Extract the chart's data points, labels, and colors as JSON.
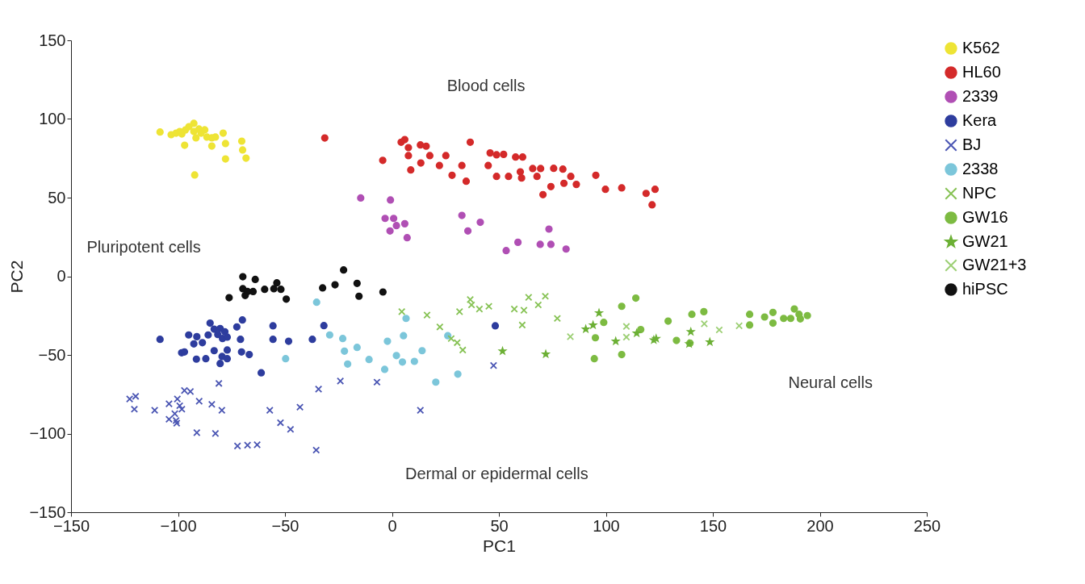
{
  "chart_data": {
    "type": "scatter",
    "xlabel": "PC1",
    "ylabel": "PC2",
    "xlim": [
      -150,
      250
    ],
    "ylim": [
      -150,
      150
    ],
    "xticks": [
      -150,
      -100,
      -50,
      0,
      50,
      100,
      150,
      200,
      250
    ],
    "yticks": [
      -150,
      -100,
      -50,
      0,
      50,
      100,
      150
    ],
    "grid": false,
    "legend": "right",
    "annotations": [
      "Blood cells",
      "Pluripotent cells",
      "Neural cells",
      "Dermal or epidermal cells"
    ],
    "series": [
      {
        "name": "K562",
        "color": "#eee435",
        "marker": "circle",
        "x": [
          -108.4,
          -103.2,
          -100.9,
          -98.2,
          -96.6,
          -94.9,
          -92.6,
          -92.6,
          -90.2,
          -89.2,
          -91.6,
          -96.9,
          -86.5,
          -84.2,
          -82.5,
          -84.2,
          -78.9,
          -77.8,
          -70.2,
          -69.8,
          -68.2,
          -77.8,
          -92.2,
          -87.5,
          -99.2
        ],
        "values": [
          91.7,
          90,
          91,
          90.5,
          93,
          95.1,
          97.2,
          92,
          93.6,
          91,
          88,
          83.3,
          88.5,
          88,
          88.5,
          82.8,
          91,
          84.4,
          85.9,
          80.3,
          75.1,
          74.6,
          64.4,
          93.1,
          92
        ]
      },
      {
        "name": "HL60",
        "color": "#d42a2a",
        "marker": "circle",
        "x": [
          -31.4,
          -4.3,
          4.3,
          6,
          7.7,
          7.7,
          13.3,
          16,
          17.7,
          8.8,
          13.5,
          22.2,
          25.2,
          28.1,
          32.7,
          34.7,
          36.6,
          45,
          45.9,
          48.9,
          52.2,
          48.9,
          54.5,
          57.8,
          61.1,
          60,
          60.6,
          65.8,
          69.5,
          67.8,
          75.6,
          79.9,
          74.3,
          70.6,
          80.4,
          83.6,
          86.2,
          95.3,
          99.8,
          107.4,
          118.8,
          123,
          121.6
        ],
        "values": [
          87.9,
          73.7,
          85.2,
          86.9,
          81.8,
          76.7,
          83.5,
          82.7,
          76.7,
          67.6,
          72,
          70.4,
          76.7,
          64.2,
          70.4,
          60.4,
          85.2,
          70.4,
          78.4,
          77.2,
          77.5,
          63.5,
          63.5,
          75.8,
          75.8,
          66.4,
          62.5,
          68.5,
          68.5,
          63.5,
          68.6,
          68.1,
          57,
          51.9,
          59.1,
          63.5,
          58.4,
          64.2,
          55.3,
          56.2,
          52.7,
          55.3,
          45.4
        ]
      },
      {
        "name": "2339",
        "color": "#b04fb4",
        "marker": "circle",
        "x": [
          -14.6,
          -0.7,
          -3.2,
          0.8,
          2.1,
          6,
          -0.9,
          7.1,
          32.7,
          41.3,
          35.5,
          53.4,
          58.9,
          73.4,
          69.3,
          74.3,
          81.4
        ],
        "values": [
          49.8,
          48.5,
          36.8,
          36.8,
          32.2,
          33.4,
          28.8,
          24.5,
          38.7,
          34.3,
          28.8,
          16.3,
          21.6,
          30,
          20.3,
          20.3,
          17.3
        ]
      },
      {
        "name": "Kera",
        "color": "#2e3d9e",
        "marker": "circle",
        "x": [
          -108.4,
          -95,
          -91.2,
          -92.6,
          -88.6,
          -98.3,
          -97,
          -91.4,
          -87,
          -85.9,
          -85,
          -83.1,
          -80.3,
          -78.1,
          -79.2,
          -77,
          -83.1,
          -77,
          -79.4,
          -77,
          -80.3,
          -72.5,
          -69.9,
          -70.8,
          -70.3,
          -66.7,
          -61.1,
          -55.6,
          -55.6,
          -48.3,
          -37.2,
          -31.8,
          48.3,
          -81.4
        ],
        "values": [
          -40.1,
          -37.3,
          -38.4,
          -43,
          -42.2,
          -48.6,
          -48.1,
          -52.7,
          -52.4,
          -37.3,
          -29.8,
          -33.6,
          -33.2,
          -35.3,
          -39.6,
          -38.7,
          -47.3,
          -46.9,
          -51,
          -52.4,
          -55.5,
          -32.2,
          -27.8,
          -40.1,
          -48.1,
          -49.8,
          -61.4,
          -31.5,
          -40.1,
          -41.3,
          -40.1,
          -31.4,
          -31.5,
          -37
        ]
      },
      {
        "name": "BJ",
        "color": "#4a55b3",
        "marker": "cross",
        "x": [
          -122.6,
          -119.8,
          -120.4,
          -110.9,
          -104.2,
          -100.3,
          -99.2,
          -98.2,
          -104.2,
          -100.9,
          -101.5,
          -100.6,
          -97,
          -94.2,
          -90.1,
          -84.2,
          -79.5,
          -80.9,
          -91.2,
          -82.5,
          -72.2,
          -67.5,
          -63,
          -57.1,
          -52.1,
          -47.4,
          -43,
          -34.3,
          -24.1,
          -35.4,
          -7,
          13.3,
          47.5
        ],
        "values": [
          -78,
          -76.3,
          -84.5,
          -85.2,
          -81.1,
          -78,
          -82.3,
          -84.5,
          -90.9,
          -91.7,
          -87.4,
          -93.4,
          -72.6,
          -73.3,
          -79.4,
          -81.4,
          -85.2,
          -68.1,
          -99.4,
          -99.9,
          -107.9,
          -107.4,
          -107.1,
          -85.2,
          -93.1,
          -97.3,
          -83.2,
          -71.7,
          -66.6,
          -110.5,
          -67.3,
          -85.2,
          -56.7
        ]
      },
      {
        "name": "2338",
        "color": "#7cc6da",
        "marker": "circle",
        "x": [
          -35.2,
          -29.1,
          -23,
          -22.2,
          -16.3,
          -20.7,
          -10.7,
          -3.4,
          -49.7,
          -2.1,
          5.4,
          6.6,
          2.1,
          4.9,
          10.5,
          14.1,
          20.5,
          30.8,
          26.1
        ],
        "values": [
          -16.5,
          -37.3,
          -39.6,
          -47.6,
          -45.2,
          -55.8,
          -52.9,
          -59.2,
          -52.4,
          -41.3,
          -37.8,
          -26.8,
          -50.4,
          -54.5,
          -54.1,
          -47.3,
          -67.3,
          -62.2,
          -37.8
        ]
      },
      {
        "name": "NPC",
        "color": "#86c254",
        "marker": "cross",
        "x": [
          4.6,
          16.4,
          22.4,
          31.6,
          36.6,
          37.2,
          40.9,
          45.3,
          57.2,
          61.7,
          63.9,
          68.4,
          71.7,
          60.9,
          77.3,
          27.7,
          30.5,
          33.1
        ],
        "values": [
          -22.5,
          -24.7,
          -32.2,
          -22.5,
          -14.8,
          -18.2,
          -20.8,
          -19.1,
          -20.8,
          -21.6,
          -13.4,
          -18.2,
          -12.7,
          -31,
          -26.8,
          -39.6,
          -42.2,
          -46.9
        ]
      },
      {
        "name": "GW16",
        "color": "#7dbb42",
        "marker": "circle",
        "x": [
          114,
          107.4,
          99,
          95.1,
          116.3,
          107.4,
          94.6,
          129.1,
          133,
          140.2,
          139.3,
          145.8,
          167.2,
          167.2,
          174.2,
          178.1,
          178.1,
          183.1,
          186.4,
          188.1,
          190.3,
          194.2,
          190.9
        ],
        "values": [
          -13.9,
          -19.1,
          -29.3,
          -39.1,
          -33.9,
          -49.8,
          -52.4,
          -28.5,
          -40.8,
          -24.2,
          -42.5,
          -22.5,
          -24.2,
          -31,
          -25.9,
          -23,
          -29.8,
          -26.8,
          -26.8,
          -20.8,
          -24.2,
          -25,
          -27.1
        ]
      },
      {
        "name": "GW21",
        "color": "#6cb035",
        "marker": "star",
        "x": [
          51.7,
          71.9,
          96.8,
          90.6,
          94,
          104.6,
          122.4,
          123.5,
          139.7,
          138.9,
          148.6,
          114.4
        ],
        "values": [
          -47.6,
          -49.5,
          -23.3,
          -33.6,
          -31,
          -41.3,
          -40.5,
          -39.6,
          -35.3,
          -43,
          -41.8,
          -36.2
        ]
      },
      {
        "name": "GW21+3",
        "color": "#9ccf74",
        "marker": "cross",
        "x": [
          83.4,
          109.6,
          146,
          153,
          162.3,
          109.6
        ],
        "values": [
          -38.4,
          -31.9,
          -30.2,
          -34.1,
          -31.5,
          -38.7
        ]
      },
      {
        "name": "hiPSC",
        "color": "#111111",
        "marker": "circle",
        "x": [
          -69.7,
          -63.9,
          -69.7,
          -67.5,
          -64.9,
          -68.6,
          -76.1,
          -59.5,
          -55.2,
          -53.8,
          -51.9,
          -49.4,
          -32.4,
          -26.6,
          -22.6,
          -16.3,
          -15.4,
          -4.2
        ],
        "values": [
          -0.3,
          -2,
          -7.9,
          -9.7,
          -9.7,
          -12.2,
          -13.6,
          -8.3,
          -7.9,
          -4.2,
          -8.3,
          -14.5,
          -7.4,
          -5.4,
          4,
          -4.5,
          -12.7,
          -10
        ]
      }
    ]
  }
}
